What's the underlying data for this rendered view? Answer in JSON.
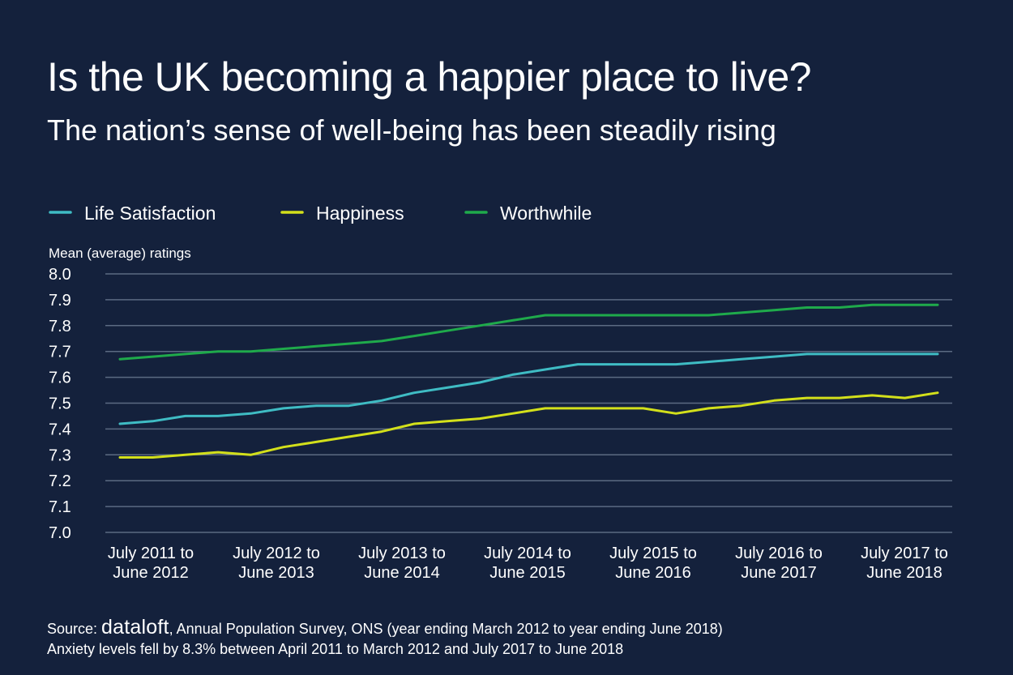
{
  "header": {
    "title": "Is the UK becoming a happier place to live?",
    "subtitle": "The nation’s sense of well-being has been steadily rising"
  },
  "footer": {
    "source_prefix": "Source: ",
    "brand": "dataloft",
    "source_rest": ", Annual Population Survey, ONS (year ending March 2012 to year ending June 2018)",
    "note": "Anxiety levels fell by 8.3% between April 2011 to March 2012 and July 2017 to June 2018"
  },
  "colors": {
    "background": "#14213c",
    "grid": "#5b6a82",
    "text": "#ffffff",
    "life_satisfaction": "#3fbcc4",
    "happiness": "#d3e01b",
    "worthwhile": "#1faa4b"
  },
  "chart_data": {
    "type": "line",
    "title": "Is the UK becoming a happier place to live?",
    "subtitle": "The nation’s sense of well-being has been steadily rising",
    "ylabel": "Mean (average) ratings",
    "ylim": [
      7.0,
      8.0
    ],
    "yticks": [
      "8.0",
      "7.9",
      "7.8",
      "7.7",
      "7.6",
      "7.5",
      "7.4",
      "7.3",
      "7.2",
      "7.1",
      "7.0"
    ],
    "grid": true,
    "legend_position": "top-left",
    "x_labels": [
      [
        "July 2011 to",
        "June 2012"
      ],
      [
        "July 2012 to",
        "June 2013"
      ],
      [
        "July 2013 to",
        "June 2014"
      ],
      [
        "July 2014 to",
        "June 2015"
      ],
      [
        "July 2015 to",
        "June 2016"
      ],
      [
        "July 2016 to",
        "June 2017"
      ],
      [
        "July 2017 to",
        "June 2018"
      ]
    ],
    "series": [
      {
        "name": "Life Satisfaction",
        "color": "#3fbcc4",
        "values": [
          7.42,
          7.43,
          7.45,
          7.45,
          7.46,
          7.48,
          7.49,
          7.49,
          7.51,
          7.54,
          7.56,
          7.58,
          7.61,
          7.63,
          7.65,
          7.65,
          7.65,
          7.65,
          7.66,
          7.67,
          7.68,
          7.69,
          7.69,
          7.69,
          7.69,
          7.69
        ]
      },
      {
        "name": "Happiness",
        "color": "#d3e01b",
        "values": [
          7.29,
          7.29,
          7.3,
          7.31,
          7.3,
          7.33,
          7.35,
          7.37,
          7.39,
          7.42,
          7.43,
          7.44,
          7.46,
          7.48,
          7.48,
          7.48,
          7.48,
          7.46,
          7.48,
          7.49,
          7.51,
          7.52,
          7.52,
          7.53,
          7.52,
          7.54
        ]
      },
      {
        "name": "Worthwhile",
        "color": "#1faa4b",
        "values": [
          7.67,
          7.68,
          7.69,
          7.7,
          7.7,
          7.71,
          7.72,
          7.73,
          7.74,
          7.76,
          7.78,
          7.8,
          7.82,
          7.84,
          7.84,
          7.84,
          7.84,
          7.84,
          7.84,
          7.85,
          7.86,
          7.87,
          7.87,
          7.88,
          7.88,
          7.88
        ]
      }
    ]
  }
}
